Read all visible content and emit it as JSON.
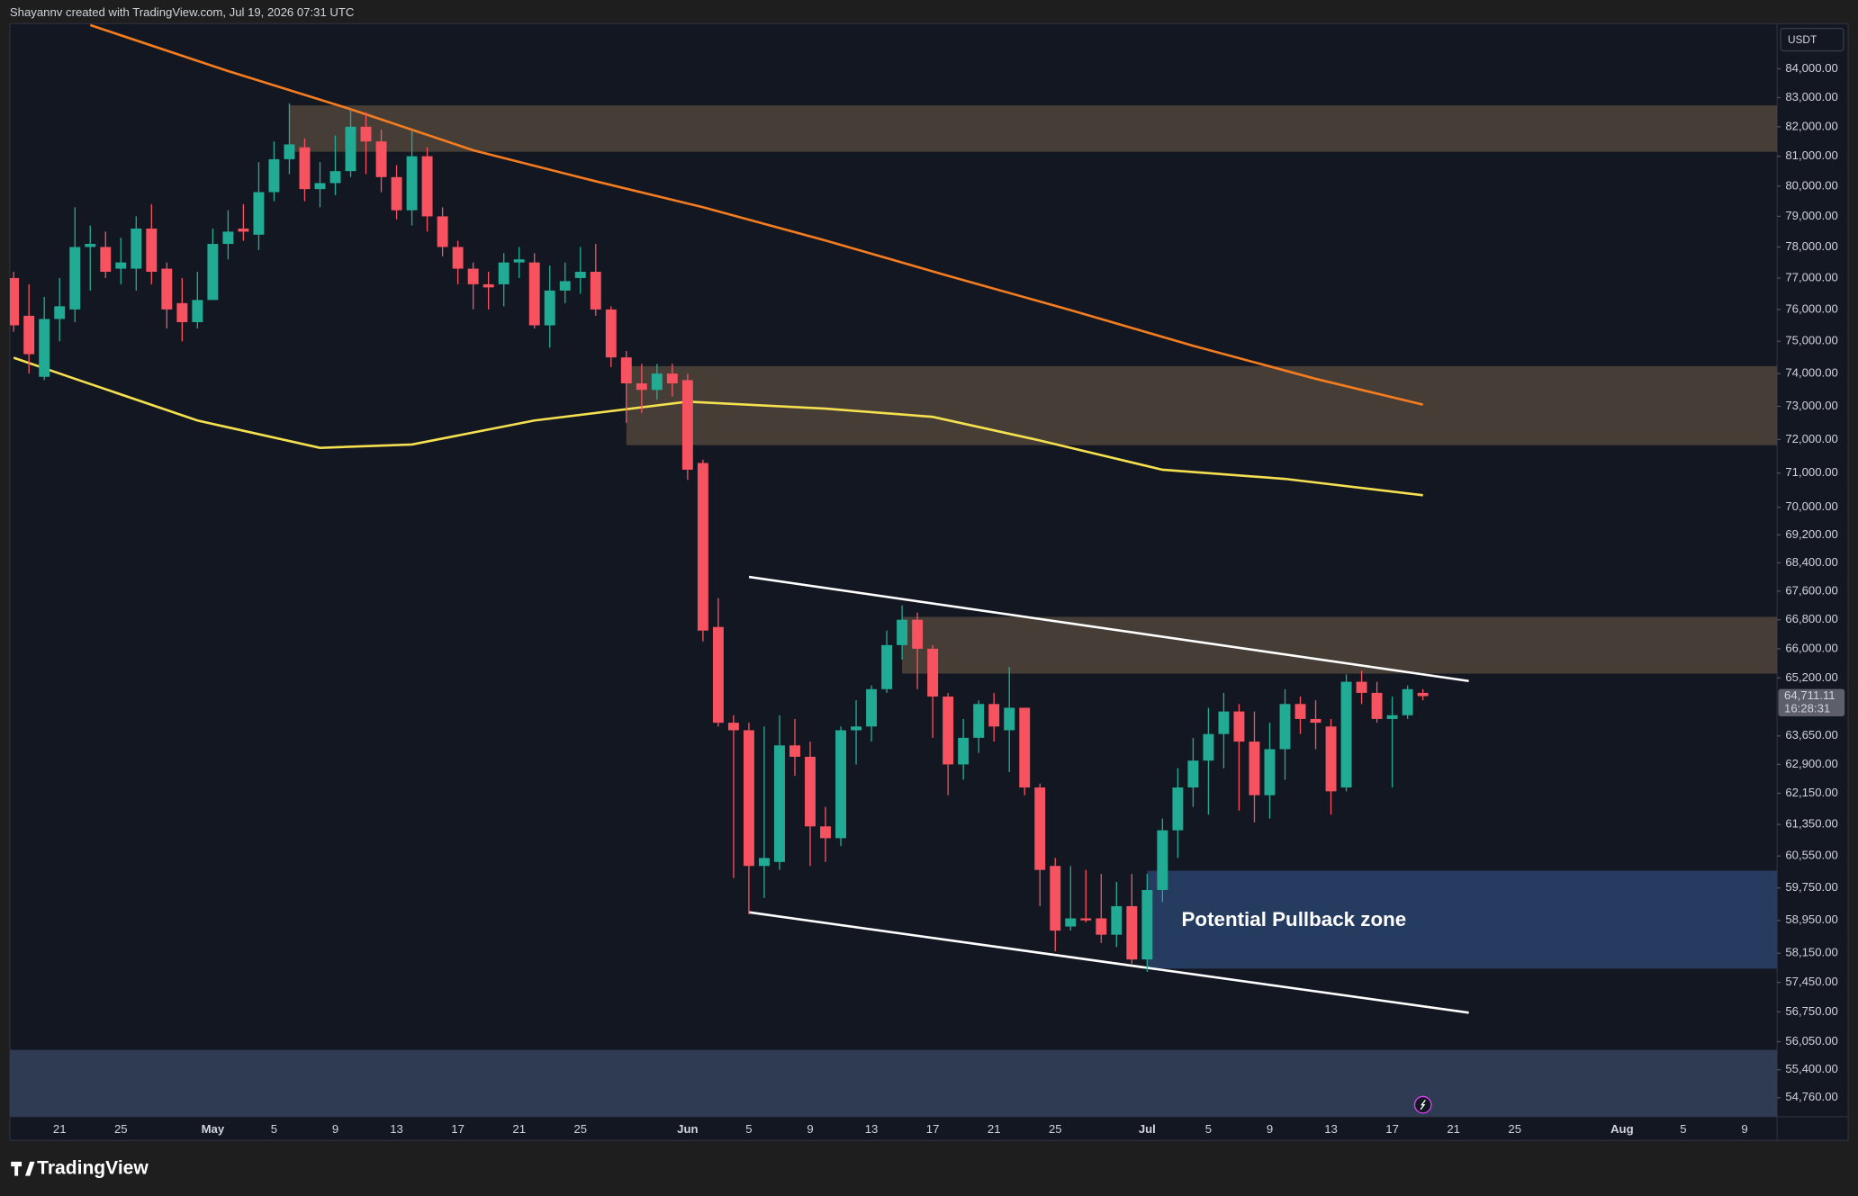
{
  "header": {
    "credit": "Shayannv created with TradingView.com, Jul 19, 2026 07:31 UTC",
    "brand": "TradingView"
  },
  "chart_data": {
    "type": "candlestick",
    "currency": "USDT",
    "log_scale": true,
    "grid": false,
    "up_color": "#22ab94",
    "down_color": "#f7525f",
    "ylim": [
      54330,
      85590
    ],
    "xlim": [
      "2026-04-17T18:00Z",
      "2026-08-11T03:00Z"
    ],
    "yticks": [
      {
        "value": 84000,
        "label": "84,000.00"
      },
      {
        "value": 83000,
        "label": "83,000.00"
      },
      {
        "value": 82000,
        "label": "82,000.00"
      },
      {
        "value": 81000,
        "label": "81,000.00"
      },
      {
        "value": 80000,
        "label": "80,000.00"
      },
      {
        "value": 79000,
        "label": "79,000.00"
      },
      {
        "value": 78000,
        "label": "78,000.00"
      },
      {
        "value": 77000,
        "label": "77,000.00"
      },
      {
        "value": 76000,
        "label": "76,000.00"
      },
      {
        "value": 75000,
        "label": "75,000.00"
      },
      {
        "value": 74000,
        "label": "74,000.00"
      },
      {
        "value": 73000,
        "label": "73,000.00"
      },
      {
        "value": 72000,
        "label": "72,000.00"
      },
      {
        "value": 71000,
        "label": "71,000.00"
      },
      {
        "value": 70000,
        "label": "70,000.00"
      },
      {
        "value": 69200,
        "label": "69,200.00"
      },
      {
        "value": 68400,
        "label": "68,400.00"
      },
      {
        "value": 67600,
        "label": "67,600.00"
      },
      {
        "value": 66800,
        "label": "66,800.00"
      },
      {
        "value": 66000,
        "label": "66,000.00"
      },
      {
        "value": 65200,
        "label": "65,200.00"
      },
      {
        "value": 63650,
        "label": "63,650.00"
      },
      {
        "value": 62900,
        "label": "62,900.00"
      },
      {
        "value": 62150,
        "label": "62,150.00"
      },
      {
        "value": 61350,
        "label": "61,350.00"
      },
      {
        "value": 60550,
        "label": "60,550.00"
      },
      {
        "value": 59750,
        "label": "59,750.00"
      },
      {
        "value": 58950,
        "label": "58,950.00"
      },
      {
        "value": 58150,
        "label": "58,150.00"
      },
      {
        "value": 57450,
        "label": "57,450.00"
      },
      {
        "value": 56750,
        "label": "56,750.00"
      },
      {
        "value": 56050,
        "label": "56,050.00"
      },
      {
        "value": 55400,
        "label": "55,400.00"
      },
      {
        "value": 54760,
        "label": "54,760.00"
      }
    ],
    "xticks": [
      {
        "value": "2026-04-21",
        "label": "21"
      },
      {
        "value": "2026-04-25",
        "label": "25"
      },
      {
        "value": "2026-05-01",
        "label": "May"
      },
      {
        "value": "2026-05-05",
        "label": "5"
      },
      {
        "value": "2026-05-09",
        "label": "9"
      },
      {
        "value": "2026-05-13",
        "label": "13"
      },
      {
        "value": "2026-05-17",
        "label": "17"
      },
      {
        "value": "2026-05-21",
        "label": "21"
      },
      {
        "value": "2026-05-25",
        "label": "25"
      },
      {
        "value": "2026-06-01",
        "label": "Jun"
      },
      {
        "value": "2026-06-05",
        "label": "5"
      },
      {
        "value": "2026-06-09",
        "label": "9"
      },
      {
        "value": "2026-06-13",
        "label": "13"
      },
      {
        "value": "2026-06-17",
        "label": "17"
      },
      {
        "value": "2026-06-21",
        "label": "21"
      },
      {
        "value": "2026-06-25",
        "label": "25"
      },
      {
        "value": "2026-07-01",
        "label": "Jul"
      },
      {
        "value": "2026-07-05",
        "label": "5"
      },
      {
        "value": "2026-07-09",
        "label": "9"
      },
      {
        "value": "2026-07-13",
        "label": "13"
      },
      {
        "value": "2026-07-17",
        "label": "17"
      },
      {
        "value": "2026-07-21",
        "label": "21"
      },
      {
        "value": "2026-07-25",
        "label": "25"
      },
      {
        "value": "2026-08-01",
        "label": "Aug"
      },
      {
        "value": "2026-08-05",
        "label": "5"
      },
      {
        "value": "2026-08-09",
        "label": "9"
      }
    ],
    "x": [
      "2026-04-18",
      "2026-04-19",
      "2026-04-20",
      "2026-04-21",
      "2026-04-22",
      "2026-04-23",
      "2026-04-24",
      "2026-04-25",
      "2026-04-26",
      "2026-04-27",
      "2026-04-28",
      "2026-04-29",
      "2026-04-30",
      "2026-05-01",
      "2026-05-02",
      "2026-05-03",
      "2026-05-04",
      "2026-05-05",
      "2026-05-06",
      "2026-05-07",
      "2026-05-08",
      "2026-05-09",
      "2026-05-10",
      "2026-05-11",
      "2026-05-12",
      "2026-05-13",
      "2026-05-14",
      "2026-05-15",
      "2026-05-16",
      "2026-05-17",
      "2026-05-18",
      "2026-05-19",
      "2026-05-20",
      "2026-05-21",
      "2026-05-22",
      "2026-05-23",
      "2026-05-24",
      "2026-05-25",
      "2026-05-26",
      "2026-05-27",
      "2026-05-28",
      "2026-05-29",
      "2026-05-30",
      "2026-05-31",
      "2026-06-01",
      "2026-06-02",
      "2026-06-03",
      "2026-06-04",
      "2026-06-05",
      "2026-06-06",
      "2026-06-07",
      "2026-06-08",
      "2026-06-09",
      "2026-06-10",
      "2026-06-11",
      "2026-06-12",
      "2026-06-13",
      "2026-06-14",
      "2026-06-15",
      "2026-06-16",
      "2026-06-17",
      "2026-06-18",
      "2026-06-19",
      "2026-06-20",
      "2026-06-21",
      "2026-06-22",
      "2026-06-23",
      "2026-06-24",
      "2026-06-25",
      "2026-06-26",
      "2026-06-27",
      "2026-06-28",
      "2026-06-29",
      "2026-06-30",
      "2026-07-01",
      "2026-07-02",
      "2026-07-03",
      "2026-07-04",
      "2026-07-05",
      "2026-07-06",
      "2026-07-07",
      "2026-07-08",
      "2026-07-09",
      "2026-07-10",
      "2026-07-11",
      "2026-07-12",
      "2026-07-13",
      "2026-07-14",
      "2026-07-15",
      "2026-07-16",
      "2026-07-17",
      "2026-07-18",
      "2026-07-19"
    ],
    "open": [
      77000,
      75800,
      73900,
      75700,
      76000,
      78000,
      78000,
      77300,
      77300,
      78600,
      77300,
      76200,
      75600,
      76300,
      78100,
      78600,
      78400,
      79800,
      80900,
      81300,
      79900,
      80100,
      80500,
      82000,
      81500,
      80300,
      79200,
      81000,
      79000,
      78000,
      77300,
      76800,
      76800,
      77500,
      77500,
      75500,
      76600,
      77000,
      77200,
      76000,
      74500,
      73700,
      73500,
      74000,
      73800,
      71300,
      66600,
      64000,
      63800,
      60300,
      60400,
      63400,
      63100,
      61300,
      61000,
      63800,
      63900,
      64900,
      66100,
      66800,
      66000,
      64700,
      62900,
      63600,
      64500,
      63800,
      64400,
      62300,
      60300,
      58800,
      59000,
      59000,
      58600,
      59300,
      58000,
      59700,
      61200,
      62300,
      63000,
      63700,
      64300,
      63500,
      62100,
      63300,
      64500,
      64100,
      63900,
      62300,
      65100,
      64800,
      64100,
      64200,
      64800
    ],
    "high": [
      77200,
      76800,
      76400,
      77000,
      79300,
      78700,
      78500,
      78300,
      79000,
      79400,
      77500,
      77000,
      77200,
      78600,
      79200,
      79400,
      80800,
      81500,
      82800,
      81600,
      80800,
      81700,
      82600,
      82500,
      81900,
      80700,
      81900,
      81300,
      79300,
      78200,
      77500,
      77200,
      77800,
      78000,
      77800,
      77400,
      77500,
      78000,
      78100,
      76100,
      74700,
      74300,
      74300,
      74300,
      74000,
      71400,
      67400,
      64200,
      64000,
      63900,
      64200,
      64100,
      63500,
      61800,
      63900,
      64600,
      65000,
      66500,
      67200,
      67000,
      66100,
      64800,
      64100,
      64600,
      64800,
      65500,
      64400,
      62400,
      60500,
      60300,
      60200,
      60100,
      59900,
      60100,
      60100,
      61500,
      62800,
      63600,
      64400,
      64800,
      64500,
      64300,
      64000,
      64900,
      64700,
      64600,
      64100,
      65300,
      65400,
      65100,
      64700,
      65000,
      64900
    ],
    "low": [
      75300,
      74000,
      73800,
      75000,
      75600,
      76600,
      77000,
      76800,
      76600,
      76800,
      75400,
      75000,
      75400,
      76300,
      77600,
      78200,
      77900,
      79500,
      80400,
      79500,
      79300,
      79700,
      80300,
      80400,
      79800,
      78900,
      78700,
      78500,
      77700,
      76800,
      76000,
      76000,
      76100,
      77000,
      75400,
      74800,
      76200,
      76500,
      75800,
      74200,
      72500,
      72800,
      73200,
      73300,
      70800,
      66200,
      63900,
      60000,
      59100,
      59500,
      60200,
      62600,
      60300,
      60400,
      60800,
      62900,
      63500,
      64800,
      65700,
      64900,
      63600,
      62100,
      62500,
      63200,
      63500,
      62700,
      62100,
      59300,
      58200,
      58700,
      58900,
      58400,
      58300,
      57900,
      57700,
      59400,
      60500,
      61800,
      61600,
      62800,
      61700,
      61400,
      61500,
      62500,
      63700,
      63300,
      61600,
      62200,
      64500,
      64000,
      62300,
      64100,
      64600
    ],
    "close": [
      75500,
      74600,
      75700,
      76100,
      78000,
      78100,
      77200,
      77500,
      78600,
      77200,
      76000,
      75600,
      76300,
      78100,
      78500,
      78500,
      79800,
      80900,
      81400,
      79900,
      80100,
      80500,
      82000,
      81500,
      80300,
      79200,
      81000,
      79000,
      78000,
      77300,
      76800,
      76700,
      77500,
      77600,
      75500,
      76600,
      76900,
      77200,
      76000,
      74500,
      73700,
      73500,
      74000,
      73700,
      71100,
      66500,
      64000,
      63800,
      60300,
      60500,
      63400,
      63100,
      61300,
      61000,
      63800,
      63900,
      64900,
      66100,
      66800,
      66000,
      64700,
      62900,
      63600,
      64500,
      63900,
      64400,
      62300,
      60200,
      58700,
      59000,
      58950,
      58600,
      59300,
      58000,
      59700,
      61200,
      62300,
      63000,
      63700,
      64300,
      63500,
      62100,
      63300,
      64500,
      64100,
      64000,
      62200,
      65100,
      64800,
      64100,
      64200,
      64900,
      64711.11
    ],
    "last_price_label": "64,711.11",
    "countdown": "16:28:31",
    "indicators": [
      {
        "color": "#f57c1f",
        "x": [
          "2026-04-23",
          "2026-05-02",
          "2026-05-10",
          "2026-05-18",
          "2026-05-26",
          "2026-06-02",
          "2026-06-10",
          "2026-06-18",
          "2026-06-26",
          "2026-07-04",
          "2026-07-12",
          "2026-07-19"
        ],
        "values": [
          85540,
          83920,
          82600,
          81200,
          80160,
          79300,
          78210,
          77070,
          75980,
          74860,
          73840,
          73050
        ]
      },
      {
        "color": "#f5e050",
        "x": [
          "2026-04-18",
          "2026-04-22",
          "2026-04-30",
          "2026-05-08",
          "2026-05-14",
          "2026-05-22",
          "2026-06-01",
          "2026-06-10",
          "2026-06-17",
          "2026-06-24",
          "2026-07-02",
          "2026-07-10",
          "2026-07-19"
        ],
        "values": [
          74490,
          73840,
          72570,
          71750,
          71850,
          72570,
          73140,
          72930,
          72680,
          71970,
          71100,
          70830,
          70350
        ]
      }
    ],
    "trendlines": [
      {
        "color": "#ffffff",
        "x": [
          "2026-06-05",
          "2026-07-22"
        ],
        "values": [
          68000,
          65120
        ]
      },
      {
        "color": "#ffffff",
        "x": [
          "2026-06-05",
          "2026-07-22"
        ],
        "values": [
          59150,
          56730
        ]
      }
    ],
    "zones": [
      {
        "x_from": "2026-05-06",
        "top": 82730,
        "bottom": 81150,
        "color": "#4d4339"
      },
      {
        "x_from": "2026-05-28",
        "top": 74230,
        "bottom": 71830,
        "color": "#4d4339"
      },
      {
        "x_from": "2026-06-15",
        "top": 66880,
        "bottom": 65320,
        "color": "#4d4339"
      },
      {
        "x_from": "2026-07-01",
        "top": 60180,
        "bottom": 57780,
        "color": "#283f66",
        "label": "Potential Pullback zone"
      },
      {
        "x_from": "2026-04-17T18:00Z",
        "top": 55860,
        "bottom": 54330,
        "color": "#323f58"
      }
    ]
  }
}
